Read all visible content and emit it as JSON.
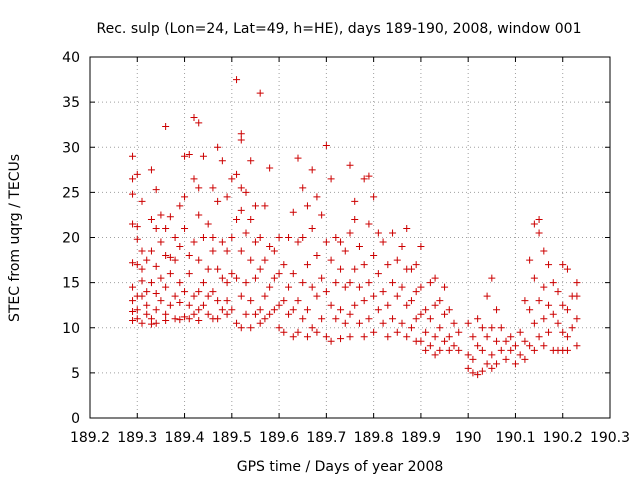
{
  "chart_data": {
    "type": "scatter",
    "title": "Rec. sulp (Lon=24, Lat=49, h=HE), days 189-190, 2008, window 001",
    "xlabel": "GPS time / Days of year 2008",
    "ylabel": "STEC from uqrg / TECUs",
    "xlim": [
      189.2,
      190.3
    ],
    "ylim": [
      0,
      40
    ],
    "x_ticks": [
      "189.2",
      "189.3",
      "189.4",
      "189.5",
      "189.6",
      "189.7",
      "189.8",
      "189.9",
      "190",
      "190.1",
      "190.2",
      "190.3"
    ],
    "y_ticks": [
      "0",
      "5",
      "10",
      "15",
      "20",
      "25",
      "30",
      "35",
      "40"
    ],
    "grid": true,
    "marker": "plus",
    "color": "#cc0000",
    "points": [
      [
        189.29,
        29.0
      ],
      [
        189.29,
        26.5
      ],
      [
        189.29,
        24.8
      ],
      [
        189.29,
        21.5
      ],
      [
        189.29,
        17.2
      ],
      [
        189.29,
        14.5
      ],
      [
        189.29,
        13.0
      ],
      [
        189.29,
        11.8
      ],
      [
        189.29,
        10.8
      ],
      [
        189.3,
        27.0
      ],
      [
        189.3,
        21.2
      ],
      [
        189.3,
        19.8
      ],
      [
        189.3,
        17.0
      ],
      [
        189.3,
        13.5
      ],
      [
        189.3,
        12.0
      ],
      [
        189.3,
        11.0
      ],
      [
        189.31,
        24.0
      ],
      [
        189.31,
        18.5
      ],
      [
        189.31,
        16.5
      ],
      [
        189.31,
        15.2
      ],
      [
        189.31,
        13.5
      ],
      [
        189.31,
        10.5
      ],
      [
        189.32,
        17.5
      ],
      [
        189.32,
        14.0
      ],
      [
        189.32,
        12.5
      ],
      [
        189.32,
        11.5
      ],
      [
        189.33,
        27.5
      ],
      [
        189.33,
        22.0
      ],
      [
        189.33,
        18.5
      ],
      [
        189.33,
        15.0
      ],
      [
        189.33,
        11.0
      ],
      [
        189.33,
        10.4
      ],
      [
        189.34,
        25.3
      ],
      [
        189.34,
        21.0
      ],
      [
        189.34,
        16.8
      ],
      [
        189.34,
        13.8
      ],
      [
        189.34,
        12.0
      ],
      [
        189.34,
        10.5
      ],
      [
        189.35,
        22.5
      ],
      [
        189.35,
        19.5
      ],
      [
        189.35,
        15.5
      ],
      [
        189.35,
        13.0
      ],
      [
        189.36,
        32.3
      ],
      [
        189.36,
        21.0
      ],
      [
        189.36,
        18.0
      ],
      [
        189.36,
        14.5
      ],
      [
        189.36,
        11.5
      ],
      [
        189.36,
        10.8
      ],
      [
        189.37,
        22.3
      ],
      [
        189.37,
        17.8
      ],
      [
        189.37,
        16.0
      ],
      [
        189.37,
        12.5
      ],
      [
        189.38,
        20.0
      ],
      [
        189.38,
        17.5
      ],
      [
        189.38,
        13.5
      ],
      [
        189.38,
        11.0
      ],
      [
        189.39,
        23.5
      ],
      [
        189.39,
        19.0
      ],
      [
        189.39,
        15.0
      ],
      [
        189.39,
        12.8
      ],
      [
        189.39,
        10.9
      ],
      [
        189.4,
        24.5
      ],
      [
        189.4,
        29.0
      ],
      [
        189.4,
        21.0
      ],
      [
        189.4,
        14.0
      ],
      [
        189.4,
        11.2
      ],
      [
        189.41,
        29.2
      ],
      [
        189.41,
        18.0
      ],
      [
        189.41,
        16.0
      ],
      [
        189.41,
        12.5
      ],
      [
        189.41,
        11.0
      ],
      [
        189.42,
        33.3
      ],
      [
        189.42,
        26.5
      ],
      [
        189.42,
        19.5
      ],
      [
        189.42,
        13.5
      ],
      [
        189.42,
        11.5
      ],
      [
        189.43,
        32.7
      ],
      [
        189.43,
        25.5
      ],
      [
        189.43,
        22.5
      ],
      [
        189.43,
        17.5
      ],
      [
        189.43,
        14.0
      ],
      [
        189.43,
        12.0
      ],
      [
        189.43,
        10.8
      ],
      [
        189.44,
        29.0
      ],
      [
        189.44,
        20.0
      ],
      [
        189.44,
        15.0
      ],
      [
        189.44,
        12.5
      ],
      [
        189.45,
        21.5
      ],
      [
        189.45,
        16.5
      ],
      [
        189.45,
        13.5
      ],
      [
        189.45,
        11.5
      ],
      [
        189.46,
        25.5
      ],
      [
        189.46,
        20.0
      ],
      [
        189.46,
        18.5
      ],
      [
        189.46,
        14.0
      ],
      [
        189.46,
        11.0
      ],
      [
        189.47,
        30.0
      ],
      [
        189.47,
        24.0
      ],
      [
        189.47,
        16.5
      ],
      [
        189.47,
        13.0
      ],
      [
        189.47,
        11.0
      ],
      [
        189.48,
        28.5
      ],
      [
        189.48,
        19.5
      ],
      [
        189.48,
        15.5
      ],
      [
        189.48,
        12.0
      ],
      [
        189.49,
        24.5
      ],
      [
        189.49,
        18.5
      ],
      [
        189.49,
        15.0
      ],
      [
        189.49,
        13.0
      ],
      [
        189.49,
        11.5
      ],
      [
        189.5,
        26.5
      ],
      [
        189.5,
        20.0
      ],
      [
        189.5,
        16.0
      ],
      [
        189.5,
        12.0
      ],
      [
        189.51,
        37.5
      ],
      [
        189.51,
        27.0
      ],
      [
        189.51,
        22.0
      ],
      [
        189.51,
        15.5
      ],
      [
        189.51,
        10.5
      ],
      [
        189.52,
        31.5
      ],
      [
        189.52,
        30.8
      ],
      [
        189.52,
        25.5
      ],
      [
        189.52,
        23.0
      ],
      [
        189.52,
        18.5
      ],
      [
        189.52,
        13.5
      ],
      [
        189.52,
        10.0
      ],
      [
        189.53,
        25.0
      ],
      [
        189.53,
        20.5
      ],
      [
        189.53,
        15.0
      ],
      [
        189.53,
        11.5
      ],
      [
        189.54,
        28.5
      ],
      [
        189.54,
        22.0
      ],
      [
        189.54,
        17.5
      ],
      [
        189.54,
        13.0
      ],
      [
        189.54,
        10.0
      ],
      [
        189.55,
        23.5
      ],
      [
        189.55,
        19.5
      ],
      [
        189.55,
        15.5
      ],
      [
        189.55,
        11.5
      ],
      [
        189.56,
        36.0
      ],
      [
        189.56,
        20.0
      ],
      [
        189.56,
        16.5
      ],
      [
        189.56,
        12.0
      ],
      [
        189.56,
        10.5
      ],
      [
        189.57,
        23.5
      ],
      [
        189.57,
        17.5
      ],
      [
        189.57,
        13.5
      ],
      [
        189.57,
        11.0
      ],
      [
        189.58,
        27.7
      ],
      [
        189.58,
        19.0
      ],
      [
        189.58,
        14.5
      ],
      [
        189.58,
        11.5
      ],
      [
        189.59,
        18.5
      ],
      [
        189.59,
        15.5
      ],
      [
        189.59,
        12.0
      ],
      [
        189.6,
        20.0
      ],
      [
        189.6,
        16.0
      ],
      [
        189.6,
        12.5
      ],
      [
        189.6,
        10.0
      ],
      [
        189.61,
        17.0
      ],
      [
        189.61,
        13.0
      ],
      [
        189.61,
        9.5
      ],
      [
        189.62,
        20.0
      ],
      [
        189.62,
        14.5
      ],
      [
        189.62,
        11.5
      ],
      [
        189.63,
        22.8
      ],
      [
        189.63,
        16.0
      ],
      [
        189.63,
        12.0
      ],
      [
        189.63,
        9.0
      ],
      [
        189.64,
        28.8
      ],
      [
        189.64,
        19.5
      ],
      [
        189.64,
        13.0
      ],
      [
        189.64,
        9.5
      ],
      [
        189.65,
        25.5
      ],
      [
        189.65,
        20.0
      ],
      [
        189.65,
        15.0
      ],
      [
        189.65,
        11.0
      ],
      [
        189.66,
        23.5
      ],
      [
        189.66,
        17.0
      ],
      [
        189.66,
        12.0
      ],
      [
        189.66,
        9.0
      ],
      [
        189.67,
        27.5
      ],
      [
        189.67,
        21.0
      ],
      [
        189.67,
        14.5
      ],
      [
        189.67,
        10.0
      ],
      [
        189.68,
        24.5
      ],
      [
        189.68,
        18.0
      ],
      [
        189.68,
        13.5
      ],
      [
        189.68,
        9.5
      ],
      [
        189.69,
        22.5
      ],
      [
        189.69,
        15.5
      ],
      [
        189.69,
        11.0
      ],
      [
        189.7,
        30.2
      ],
      [
        189.7,
        19.5
      ],
      [
        189.7,
        14.0
      ],
      [
        189.7,
        9.0
      ],
      [
        189.71,
        26.5
      ],
      [
        189.71,
        17.5
      ],
      [
        189.71,
        12.5
      ],
      [
        189.71,
        8.5
      ],
      [
        189.72,
        20.0
      ],
      [
        189.72,
        15.0
      ],
      [
        189.72,
        11.0
      ],
      [
        189.73,
        19.5
      ],
      [
        189.73,
        16.5
      ],
      [
        189.73,
        12.0
      ],
      [
        189.73,
        8.8
      ],
      [
        189.74,
        18.5
      ],
      [
        189.74,
        14.5
      ],
      [
        189.74,
        10.5
      ],
      [
        189.75,
        28.0
      ],
      [
        189.75,
        20.5
      ],
      [
        189.75,
        15.0
      ],
      [
        189.75,
        11.5
      ],
      [
        189.75,
        9.0
      ],
      [
        189.76,
        24.0
      ],
      [
        189.76,
        22.0
      ],
      [
        189.76,
        16.5
      ],
      [
        189.76,
        12.5
      ],
      [
        189.77,
        19.0
      ],
      [
        189.77,
        14.5
      ],
      [
        189.77,
        10.5
      ],
      [
        189.78,
        26.5
      ],
      [
        189.78,
        17.0
      ],
      [
        189.78,
        13.0
      ],
      [
        189.78,
        9.0
      ],
      [
        189.79,
        26.8
      ],
      [
        189.79,
        21.5
      ],
      [
        189.79,
        15.0
      ],
      [
        189.79,
        11.0
      ],
      [
        189.8,
        24.5
      ],
      [
        189.8,
        18.0
      ],
      [
        189.8,
        13.5
      ],
      [
        189.8,
        9.5
      ],
      [
        189.81,
        20.5
      ],
      [
        189.81,
        16.0
      ],
      [
        189.81,
        12.0
      ],
      [
        189.82,
        19.5
      ],
      [
        189.82,
        14.0
      ],
      [
        189.82,
        10.5
      ],
      [
        189.83,
        17.0
      ],
      [
        189.83,
        12.5
      ],
      [
        189.83,
        9.0
      ],
      [
        189.84,
        20.5
      ],
      [
        189.84,
        15.0
      ],
      [
        189.84,
        11.0
      ],
      [
        189.85,
        17.5
      ],
      [
        189.85,
        13.5
      ],
      [
        189.85,
        9.5
      ],
      [
        189.86,
        19.0
      ],
      [
        189.86,
        14.5
      ],
      [
        189.86,
        10.5
      ],
      [
        189.87,
        21.0
      ],
      [
        189.87,
        16.5
      ],
      [
        189.87,
        12.5
      ],
      [
        189.87,
        9.0
      ],
      [
        189.88,
        16.5
      ],
      [
        189.88,
        13.0
      ],
      [
        189.88,
        10.0
      ],
      [
        189.89,
        17.0
      ],
      [
        189.89,
        14.0
      ],
      [
        189.89,
        11.0
      ],
      [
        189.89,
        8.5
      ],
      [
        189.9,
        19.0
      ],
      [
        189.9,
        14.5
      ],
      [
        189.9,
        11.5
      ],
      [
        189.9,
        8.5
      ],
      [
        189.91,
        12.0
      ],
      [
        189.91,
        9.5
      ],
      [
        189.91,
        7.5
      ],
      [
        189.92,
        15.0
      ],
      [
        189.92,
        11.0
      ],
      [
        189.92,
        8.0
      ],
      [
        189.93,
        15.5
      ],
      [
        189.93,
        12.5
      ],
      [
        189.93,
        9.0
      ],
      [
        189.93,
        7.0
      ],
      [
        189.94,
        13.0
      ],
      [
        189.94,
        10.0
      ],
      [
        189.94,
        7.5
      ],
      [
        189.95,
        14.5
      ],
      [
        189.95,
        11.5
      ],
      [
        189.95,
        8.5
      ],
      [
        189.96,
        12.0
      ],
      [
        189.96,
        9.0
      ],
      [
        189.96,
        7.5
      ],
      [
        189.97,
        10.5
      ],
      [
        189.97,
        8.0
      ],
      [
        189.98,
        9.5
      ],
      [
        189.98,
        7.5
      ],
      [
        190.0,
        10.5
      ],
      [
        190.0,
        7.0
      ],
      [
        190.0,
        5.5
      ],
      [
        190.01,
        9.0
      ],
      [
        190.01,
        6.5
      ],
      [
        190.01,
        5.0
      ],
      [
        190.02,
        11.0
      ],
      [
        190.02,
        8.0
      ],
      [
        190.02,
        4.8
      ],
      [
        190.03,
        10.0
      ],
      [
        190.03,
        7.5
      ],
      [
        190.03,
        5.2
      ],
      [
        190.04,
        13.5
      ],
      [
        190.04,
        9.0
      ],
      [
        190.04,
        6.0
      ],
      [
        190.05,
        15.5
      ],
      [
        190.05,
        10.0
      ],
      [
        190.05,
        7.0
      ],
      [
        190.05,
        5.5
      ],
      [
        190.06,
        12.0
      ],
      [
        190.06,
        8.5
      ],
      [
        190.06,
        6.0
      ],
      [
        190.07,
        10.0
      ],
      [
        190.07,
        7.5
      ],
      [
        190.08,
        8.5
      ],
      [
        190.08,
        6.5
      ],
      [
        190.09,
        9.0
      ],
      [
        190.09,
        7.5
      ],
      [
        190.1,
        8.0
      ],
      [
        190.1,
        6.0
      ],
      [
        190.11,
        9.5
      ],
      [
        190.11,
        7.0
      ],
      [
        190.12,
        13.0
      ],
      [
        190.12,
        8.5
      ],
      [
        190.12,
        6.5
      ],
      [
        190.13,
        17.5
      ],
      [
        190.13,
        12.0
      ],
      [
        190.13,
        8.0
      ],
      [
        190.14,
        21.5
      ],
      [
        190.14,
        15.5
      ],
      [
        190.14,
        10.5
      ],
      [
        190.14,
        7.5
      ],
      [
        190.15,
        22.0
      ],
      [
        190.15,
        20.5
      ],
      [
        190.15,
        13.0
      ],
      [
        190.15,
        9.0
      ],
      [
        190.16,
        18.5
      ],
      [
        190.16,
        14.5
      ],
      [
        190.16,
        11.0
      ],
      [
        190.16,
        8.0
      ],
      [
        190.17,
        17.0
      ],
      [
        190.17,
        12.5
      ],
      [
        190.17,
        9.5
      ],
      [
        190.18,
        15.0
      ],
      [
        190.18,
        11.5
      ],
      [
        190.18,
        7.5
      ],
      [
        190.19,
        14.0
      ],
      [
        190.19,
        10.5
      ],
      [
        190.19,
        7.5
      ],
      [
        190.2,
        17.0
      ],
      [
        190.2,
        12.5
      ],
      [
        190.2,
        9.5
      ],
      [
        190.2,
        7.5
      ],
      [
        190.21,
        16.5
      ],
      [
        190.21,
        12.0
      ],
      [
        190.21,
        9.0
      ],
      [
        190.21,
        7.5
      ],
      [
        190.22,
        13.5
      ],
      [
        190.22,
        10.0
      ],
      [
        190.23,
        15.0
      ],
      [
        190.23,
        13.5
      ],
      [
        190.23,
        11.0
      ],
      [
        190.23,
        8.0
      ]
    ]
  }
}
